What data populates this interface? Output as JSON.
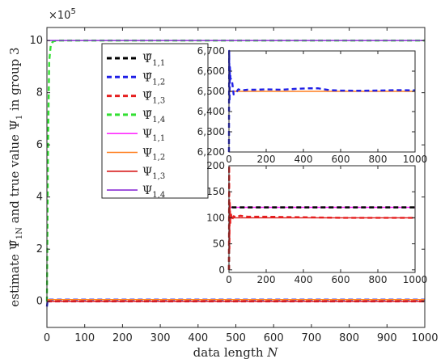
{
  "chart_data": [
    {
      "type": "line",
      "xlabel": "data length N",
      "ylabel": "estimate Ψ̂1N and true value Ψ1 in group 3",
      "multiplier": "×10",
      "multiplier_exp": "5",
      "xlim": [
        0,
        1000
      ],
      "ylim": [
        -1,
        10.5
      ],
      "xticks": [
        0,
        100,
        200,
        300,
        400,
        500,
        600,
        700,
        800,
        900,
        1000
      ],
      "yticks": [
        0,
        2,
        4,
        6,
        8,
        10
      ],
      "series": [
        {
          "name": "Ψ̂1,1",
          "base": "Ψ",
          "hat": true,
          "sub": "1,1",
          "color": "#000000",
          "dashed": true,
          "x": [
            0,
            2,
            10,
            20,
            50,
            1000
          ],
          "y": [
            0,
            0.0012,
            0.0012,
            0.0012,
            0.0012,
            0.0012
          ]
        },
        {
          "name": "Ψ̂1,2",
          "base": "Ψ",
          "hat": true,
          "sub": "1,2",
          "color": "#1f1fe6",
          "dashed": true,
          "x": [
            0,
            2,
            10,
            20,
            50,
            1000
          ],
          "y": [
            -0.2,
            0.065,
            0.065,
            0.065,
            0.065,
            0.065
          ]
        },
        {
          "name": "Ψ̂1,3",
          "base": "Ψ",
          "hat": true,
          "sub": "1,3",
          "color": "#e62020",
          "dashed": true,
          "x": [
            0,
            2,
            10,
            20,
            50,
            1000
          ],
          "y": [
            0,
            0.001,
            0.001,
            0.001,
            0.001,
            0.001
          ]
        },
        {
          "name": "Ψ̂1,4",
          "base": "Ψ",
          "hat": true,
          "sub": "1,4",
          "color": "#33e033",
          "dashed": true,
          "x": [
            0,
            3,
            6,
            10,
            15,
            20,
            30,
            1000
          ],
          "y": [
            0,
            6,
            9.2,
            9.8,
            9.95,
            9.98,
            10,
            10
          ]
        },
        {
          "name": "Ψ1,1",
          "base": "Ψ",
          "hat": false,
          "sub": "1,1",
          "color": "#ff2cff",
          "dashed": false,
          "x": [
            0,
            1000
          ],
          "y": [
            0.0012,
            0.0012
          ]
        },
        {
          "name": "Ψ1,2",
          "base": "Ψ",
          "hat": false,
          "sub": "1,2",
          "color": "#ff7f1e",
          "dashed": false,
          "x": [
            0,
            1000
          ],
          "y": [
            0.065,
            0.065
          ]
        },
        {
          "name": "Ψ1,3",
          "base": "Ψ",
          "hat": false,
          "sub": "1,3",
          "color": "#d71818",
          "dashed": false,
          "x": [
            0,
            1000
          ],
          "y": [
            0.001,
            0.001
          ]
        },
        {
          "name": "Ψ1,4",
          "base": "Ψ",
          "hat": false,
          "sub": "1,4",
          "color": "#8c2fd6",
          "dashed": false,
          "x": [
            0,
            1000
          ],
          "y": [
            10,
            10
          ]
        }
      ],
      "legend_position": "top-left"
    },
    {
      "type": "line",
      "xlim": [
        0,
        1000
      ],
      "ylim": [
        6200,
        6700
      ],
      "xticks": [
        0,
        200,
        400,
        600,
        800,
        1000
      ],
      "yticks": [
        6200,
        6300,
        6400,
        6500,
        6600,
        6700
      ],
      "ytick_labels": [
        "6,200",
        "6,300",
        "6,400",
        "6,500",
        "6,600",
        "6,700"
      ],
      "series": [
        {
          "name": "Ψ1,2",
          "color": "#ff7f1e",
          "dashed": false,
          "x": [
            0,
            1000
          ],
          "y": [
            6500,
            6500
          ]
        },
        {
          "name": "Ψ̂1,2",
          "color": "#1f1fe6",
          "dashed": true,
          "x": [
            0,
            1,
            3,
            5,
            8,
            12,
            18,
            25,
            35,
            50,
            70,
            100,
            150,
            200,
            280,
            350,
            420,
            480,
            540,
            600,
            700,
            800,
            900,
            1000
          ],
          "y": [
            6200,
            6700,
            6450,
            6620,
            6560,
            6560,
            6540,
            6485,
            6490,
            6510,
            6505,
            6508,
            6508,
            6510,
            6508,
            6512,
            6515,
            6515,
            6506,
            6504,
            6503,
            6504,
            6506,
            6505
          ]
        }
      ]
    },
    {
      "type": "line",
      "xlim": [
        0,
        1000
      ],
      "ylim": [
        -5,
        200
      ],
      "xticks": [
        0,
        200,
        400,
        600,
        800,
        1000
      ],
      "yticks": [
        0,
        50,
        100,
        150,
        200
      ],
      "series": [
        {
          "name": "Ψ1,1",
          "color": "#ff2cff",
          "dashed": false,
          "x": [
            0,
            1000
          ],
          "y": [
            120,
            120
          ]
        },
        {
          "name": "Ψ̂1,1",
          "color": "#000000",
          "dashed": true,
          "x": [
            0,
            2,
            5,
            10,
            20,
            50,
            1000
          ],
          "y": [
            0,
            128,
            120,
            121,
            120,
            120,
            120
          ]
        },
        {
          "name": "Ψ1,3",
          "color": "#d71818",
          "dashed": false,
          "x": [
            0,
            1000
          ],
          "y": [
            100,
            100
          ]
        },
        {
          "name": "Ψ̂1,3",
          "color": "#e62020",
          "dashed": true,
          "x": [
            0,
            1,
            2,
            4,
            7,
            10,
            15,
            25,
            40,
            60,
            100,
            200,
            400,
            600,
            800,
            1000
          ],
          "y": [
            0,
            200,
            40,
            130,
            90,
            110,
            95,
            103,
            101,
            104,
            102,
            102,
            101,
            100,
            100,
            100
          ]
        }
      ]
    }
  ]
}
